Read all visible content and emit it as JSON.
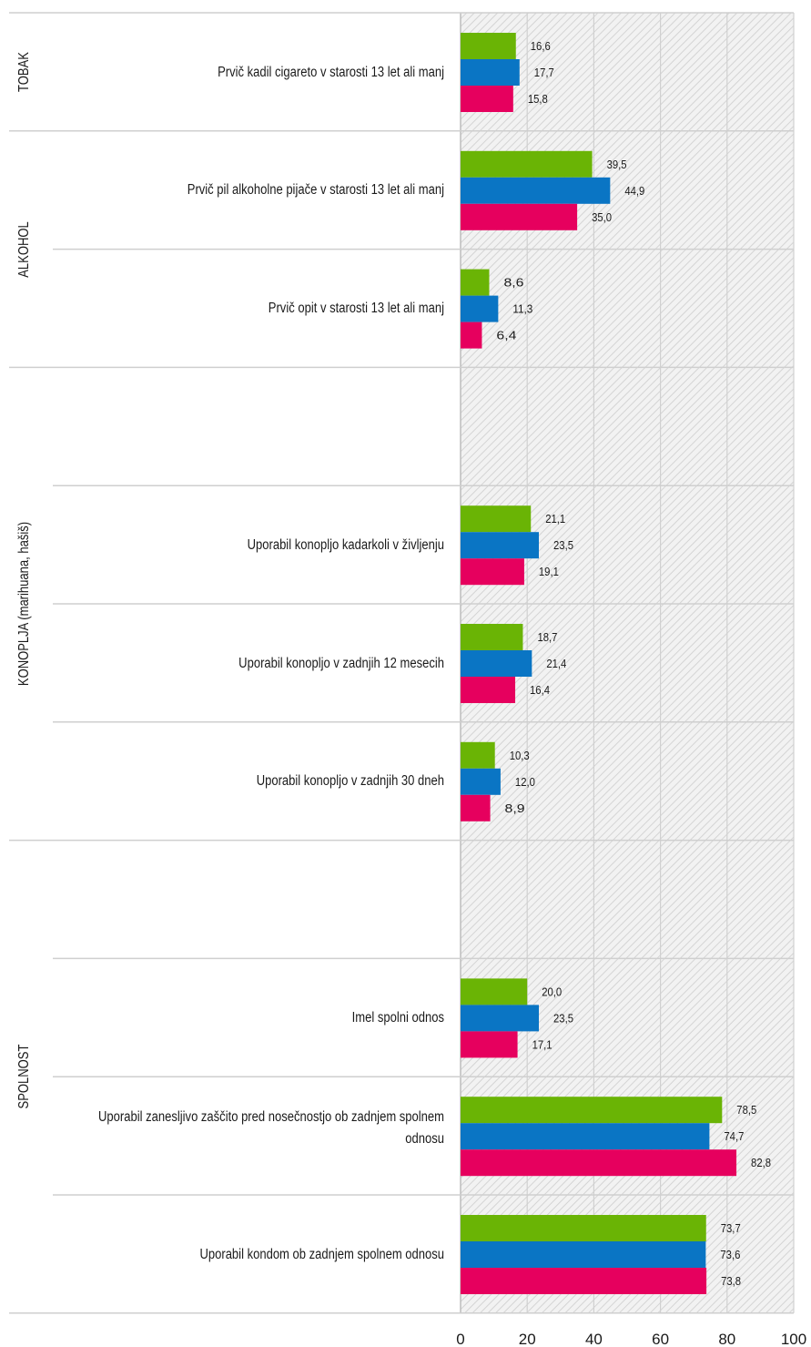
{
  "chart_data": {
    "type": "bar",
    "orientation": "horizontal",
    "title": "",
    "xlim": [
      0,
      100
    ],
    "x_ticks": [
      "0",
      "20",
      "40",
      "60",
      "80",
      "100"
    ],
    "grid": true,
    "series_colors": [
      "#6ab405",
      "#0a75c4",
      "#e6005e"
    ],
    "groups": [
      {
        "label": "TOBAK",
        "row_start": 0,
        "row_span": 1
      },
      {
        "label": "ALKOHOL",
        "row_start": 1,
        "row_span": 2
      },
      {
        "label": "KONOPLJA (marihuana, hašiš)",
        "row_start": 3,
        "row_span": 4
      },
      {
        "label": "SPOLNOST",
        "row_start": 7,
        "row_span": 4
      }
    ],
    "rows": [
      {
        "label": "Prvič kadil cigareto v starosti 13 let ali manj",
        "values": [
          16.6,
          17.7,
          15.8
        ],
        "value_labels": [
          "16,6",
          "17,7",
          "15,8"
        ]
      },
      {
        "label": "Prvič pil alkoholne pijače v starosti 13 let ali manj",
        "values": [
          39.5,
          44.9,
          35.0
        ],
        "value_labels": [
          "39,5",
          "44,9",
          "35,0"
        ]
      },
      {
        "label": "Prvič opit v starosti 13 let ali manj",
        "values": [
          8.6,
          11.3,
          6.4
        ],
        "value_labels": [
          "8,6",
          "11,3",
          "6,4"
        ]
      },
      {
        "label": "",
        "values": [],
        "value_labels": []
      },
      {
        "label": "Uporabil konopljo kadarkoli v življenju",
        "values": [
          21.1,
          23.5,
          19.1
        ],
        "value_labels": [
          "21,1",
          "23,5",
          "19,1"
        ]
      },
      {
        "label": "Uporabil konopljo v zadnjih 12 mesecih",
        "values": [
          18.7,
          21.4,
          16.4
        ],
        "value_labels": [
          "18,7",
          "21,4",
          "16,4"
        ]
      },
      {
        "label": "Uporabil konopljo v zadnjih 30 dneh",
        "values": [
          10.3,
          12.0,
          8.9
        ],
        "value_labels": [
          "10,3",
          "12,0",
          "8,9"
        ]
      },
      {
        "label": "",
        "values": [],
        "value_labels": []
      },
      {
        "label": "Imel spolni odnos",
        "values": [
          20.0,
          23.5,
          17.1
        ],
        "value_labels": [
          "20,0",
          "23,5",
          "17,1"
        ]
      },
      {
        "label": "Uporabil zanesljivo zaščito pred nosečnostjo ob zadnjem spolnem odnosu",
        "values": [
          78.5,
          74.7,
          82.8
        ],
        "value_labels": [
          "78,5",
          "74,7",
          "82,8"
        ]
      },
      {
        "label": "Uporabil kondom ob zadnjem spolnem odnosu",
        "values": [
          73.7,
          73.6,
          73.8
        ],
        "value_labels": [
          "73,7",
          "73,6",
          "73,8"
        ]
      }
    ]
  }
}
